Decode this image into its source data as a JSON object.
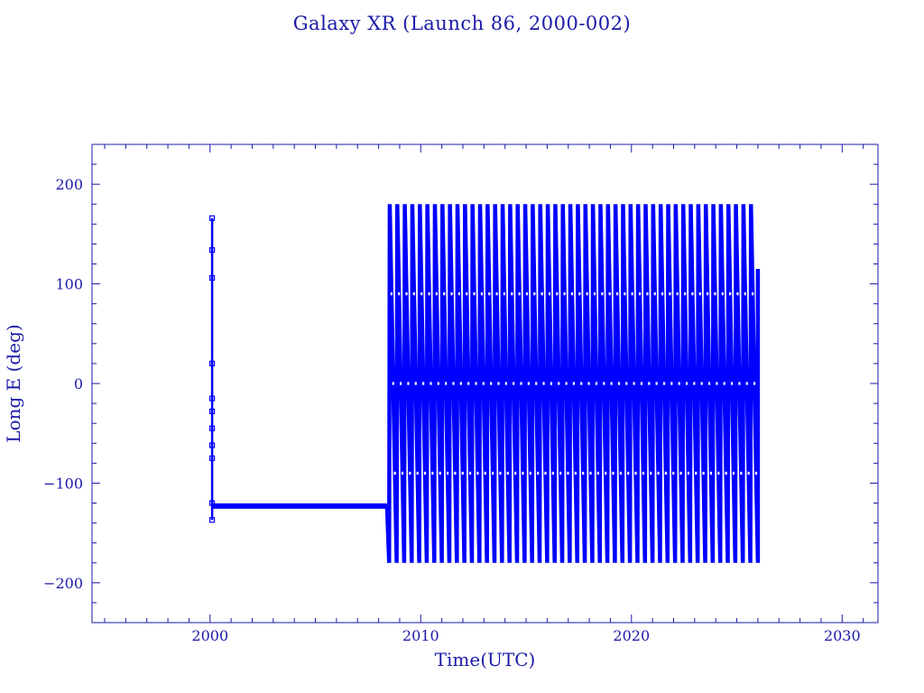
{
  "colors": {
    "axis": "#1a1aa8",
    "series": "#0000ff",
    "background": "#ffffff"
  },
  "chart_data": {
    "type": "line",
    "title": "Galaxy XR (Launch 86, 2000-002)",
    "xlabel": "Time(UTC)",
    "ylabel": "Long E (deg)",
    "xlim": [
      1994.4,
      2031.7
    ],
    "ylim": [
      -240,
      240
    ],
    "xticks": [
      2000,
      2010,
      2020,
      2030
    ],
    "xtick_labels": [
      "2000",
      "2010",
      "2020",
      "2030"
    ],
    "yticks": [
      200,
      100,
      0,
      -100,
      -200
    ],
    "ytick_labels": [
      "200",
      "100",
      "0",
      "−100",
      "−200"
    ],
    "grid": false,
    "legend": "none",
    "markers": "small squares",
    "series": [
      {
        "segments": [
          {
            "kind": "spike",
            "x": 2000.1,
            "y_range": [
              -137,
              166
            ]
          },
          {
            "kind": "constant",
            "x_range": [
              2000.1,
              2008.4
            ],
            "y": -123
          },
          {
            "kind": "drift",
            "x_range": [
              2008.5,
              2026.0
            ],
            "y_range": [
              -180,
              180
            ],
            "wraps_approx": 49,
            "end_y": 115
          }
        ]
      }
    ]
  }
}
